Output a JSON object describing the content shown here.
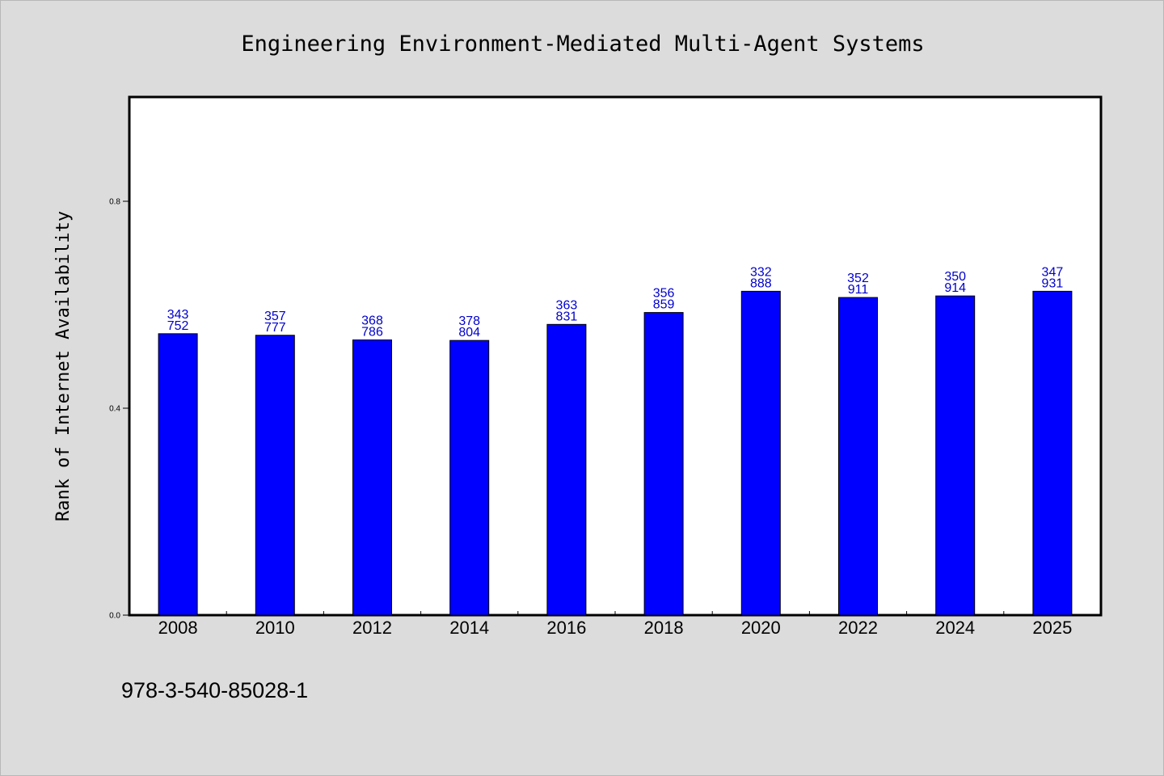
{
  "chart_data": {
    "type": "bar",
    "title": "Engineering Environment-Mediated Multi-Agent Systems",
    "xlabel": "",
    "ylabel": "Rank of Internet Availability",
    "categories": [
      "2008",
      "2010",
      "2012",
      "2014",
      "2016",
      "2018",
      "2020",
      "2022",
      "2024",
      "2025"
    ],
    "values": [
      0.544,
      0.541,
      0.532,
      0.531,
      0.562,
      0.585,
      0.626,
      0.614,
      0.617,
      0.626
    ],
    "bar_labels": [
      [
        "343",
        "752"
      ],
      [
        "357",
        "777"
      ],
      [
        "368",
        "786"
      ],
      [
        "378",
        "804"
      ],
      [
        "363",
        "831"
      ],
      [
        "356",
        "859"
      ],
      [
        "332",
        "888"
      ],
      [
        "352",
        "911"
      ],
      [
        "350",
        "914"
      ],
      [
        "347",
        "931"
      ]
    ],
    "ylim": [
      0,
      1.0
    ],
    "yticks": [
      0.0,
      0.4,
      0.8
    ],
    "ytick_labels": [
      "0.0",
      "0.4",
      "0.8"
    ],
    "grid": false,
    "legend": "none",
    "colors": {
      "bar_fill": "#0000ff",
      "bar_stroke": "#000000",
      "bar_label": "#0000cc",
      "plot_background": "#ffffff",
      "figure_background": "#dcdcdc"
    }
  },
  "footer": {
    "isbn": "978-3-540-85028-1"
  }
}
